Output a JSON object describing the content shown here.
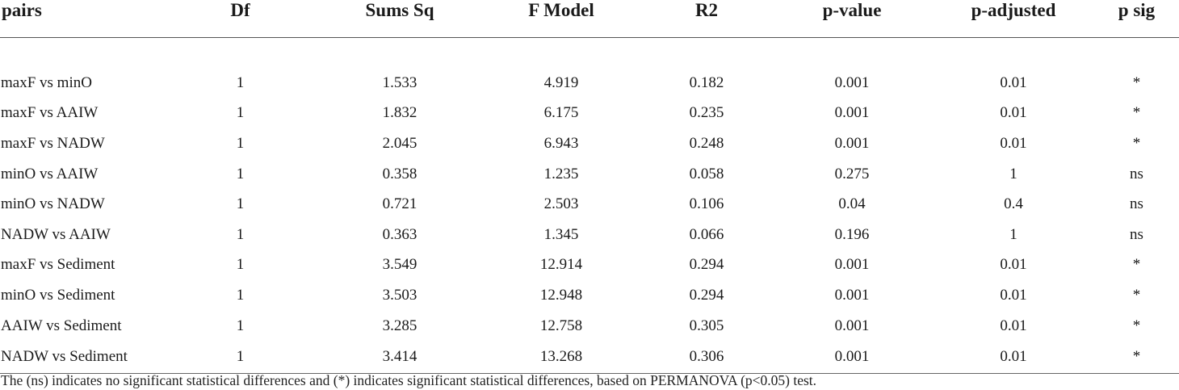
{
  "table": {
    "headers": [
      "pairs",
      "Df",
      "Sums Sq",
      "F Model",
      "R2",
      "p-value",
      "p-adjusted",
      "p sig"
    ],
    "rows": [
      [
        "maxF vs minO",
        "1",
        "1.533",
        "4.919",
        "0.182",
        "0.001",
        "0.01",
        "*"
      ],
      [
        "maxF vs AAIW",
        "1",
        "1.832",
        "6.175",
        "0.235",
        "0.001",
        "0.01",
        "*"
      ],
      [
        "maxF vs NADW",
        "1",
        "2.045",
        "6.943",
        "0.248",
        "0.001",
        "0.01",
        "*"
      ],
      [
        "minO vs AAIW",
        "1",
        "0.358",
        "1.235",
        "0.058",
        "0.275",
        "1",
        "ns"
      ],
      [
        "minO vs NADW",
        "1",
        "0.721",
        "2.503",
        "0.106",
        "0.04",
        "0.4",
        "ns"
      ],
      [
        "NADW vs AAIW",
        "1",
        "0.363",
        "1.345",
        "0.066",
        "0.196",
        "1",
        "ns"
      ],
      [
        "maxF vs Sediment",
        "1",
        "3.549",
        "12.914",
        "0.294",
        "0.001",
        "0.01",
        "*"
      ],
      [
        "minO vs Sediment",
        "1",
        "3.503",
        "12.948",
        "0.294",
        "0.001",
        "0.01",
        "*"
      ],
      [
        "AAIW vs Sediment",
        "1",
        "3.285",
        "12.758",
        "0.305",
        "0.001",
        "0.01",
        "*"
      ],
      [
        "NADW vs Sediment",
        "1",
        "3.414",
        "13.268",
        "0.306",
        "0.001",
        "0.01",
        "*"
      ]
    ]
  },
  "footnote": "The (ns) indicates no significant statistical differences and (*) indicates significant statistical differences, based on PERMANOVA (p<0.05) test."
}
